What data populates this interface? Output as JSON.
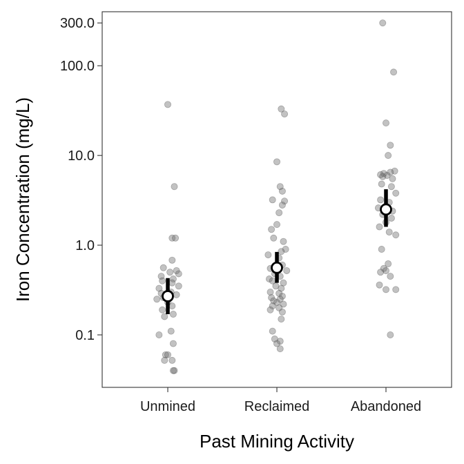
{
  "chart_data": {
    "type": "scatter",
    "title": "",
    "xlabel": "Past Mining Activity",
    "ylabel": "Iron Concentration (mg/L)",
    "y_scale": "log",
    "ylim": [
      0.026,
      400
    ],
    "grid": false,
    "legend": "none",
    "categories": [
      "Unmined",
      "Reclaimed",
      "Abandoned"
    ],
    "y_ticks": [
      0.1,
      1.0,
      10.0,
      100.0,
      300.0
    ],
    "y_tick_labels": [
      "0.1",
      "1.0",
      "10.0",
      "100.0",
      "300.0"
    ],
    "series": [
      {
        "category": "Unmined",
        "values": [
          37,
          4.5,
          1.2,
          1.2,
          0.68,
          0.56,
          0.52,
          0.5,
          0.48,
          0.45,
          0.42,
          0.4,
          0.38,
          0.35,
          0.33,
          0.3,
          0.29,
          0.28,
          0.26,
          0.25,
          0.23,
          0.21,
          0.19,
          0.17,
          0.16,
          0.11,
          0.1,
          0.08,
          0.06,
          0.06,
          0.052,
          0.052,
          0.04,
          0.04
        ],
        "offsets": [
          0,
          0.06,
          0.04,
          0.07,
          0.04,
          -0.04,
          0.08,
          0.02,
          0.1,
          -0.06,
          0.05,
          -0.05,
          0.04,
          0.1,
          -0.08,
          0.03,
          -0.06,
          0.08,
          -0.04,
          -0.1,
          0.0,
          0.04,
          -0.05,
          0.05,
          -0.03,
          0.03,
          -0.08,
          0.05,
          -0.02,
          0.0,
          0.04,
          -0.03,
          0.06,
          0.05
        ]
      },
      {
        "category": "Reclaimed",
        "values": [
          33,
          29,
          8.5,
          4.5,
          4.0,
          3.2,
          3.1,
          2.8,
          2.3,
          1.7,
          1.5,
          1.2,
          1.1,
          0.9,
          0.85,
          0.78,
          0.72,
          0.6,
          0.55,
          0.52,
          0.48,
          0.45,
          0.42,
          0.4,
          0.38,
          0.35,
          0.33,
          0.3,
          0.29,
          0.27,
          0.26,
          0.25,
          0.24,
          0.23,
          0.22,
          0.21,
          0.2,
          0.19,
          0.18,
          0.15,
          0.11,
          0.09,
          0.085,
          0.08,
          0.07
        ],
        "offsets": [
          0.04,
          0.07,
          0.0,
          0.03,
          0.05,
          -0.04,
          0.07,
          0.05,
          0.02,
          0.0,
          -0.05,
          -0.03,
          0.06,
          0.08,
          0.04,
          -0.08,
          0.02,
          0.05,
          -0.06,
          0.09,
          -0.02,
          0.03,
          -0.07,
          -0.04,
          0.06,
          -0.01,
          0.04,
          -0.06,
          0.02,
          0.05,
          -0.05,
          0.03,
          -0.03,
          0.0,
          0.06,
          -0.04,
          0.02,
          -0.06,
          0.05,
          0.04,
          -0.04,
          -0.02,
          0.03,
          0.0,
          0.03
        ]
      },
      {
        "category": "Abandoned",
        "values": [
          300,
          85,
          23,
          13,
          10,
          6.7,
          6.5,
          6.3,
          6.1,
          6.0,
          5.8,
          5.5,
          4.8,
          4.5,
          3.8,
          3.2,
          3.0,
          2.6,
          2.4,
          2.2,
          2.0,
          1.8,
          1.6,
          1.4,
          1.3,
          0.9,
          0.62,
          0.55,
          0.52,
          0.5,
          0.45,
          0.36,
          0.32,
          0.32,
          0.1
        ],
        "offsets": [
          -0.03,
          0.07,
          0.0,
          0.04,
          0.02,
          0.08,
          0.04,
          -0.02,
          -0.05,
          0.01,
          -0.03,
          0.06,
          -0.04,
          0.05,
          0.09,
          -0.05,
          0.03,
          -0.07,
          0.06,
          -0.03,
          0.05,
          0.0,
          -0.06,
          0.03,
          0.09,
          -0.04,
          0.02,
          -0.02,
          0.0,
          -0.05,
          0.04,
          -0.06,
          0.0,
          0.09,
          0.04
        ]
      }
    ],
    "summary": [
      {
        "category": "Unmined",
        "center": 0.27,
        "lower": 0.17,
        "upper": 0.43
      },
      {
        "category": "Reclaimed",
        "center": 0.56,
        "lower": 0.38,
        "upper": 0.84
      },
      {
        "category": "Abandoned",
        "center": 2.5,
        "lower": 1.6,
        "upper": 4.2
      }
    ],
    "colors": {
      "point_fill": "#6e6e6e",
      "point_stroke": "#3a3a3a",
      "summary_line": "#000000",
      "summary_marker_fill": "#ffffff"
    }
  }
}
